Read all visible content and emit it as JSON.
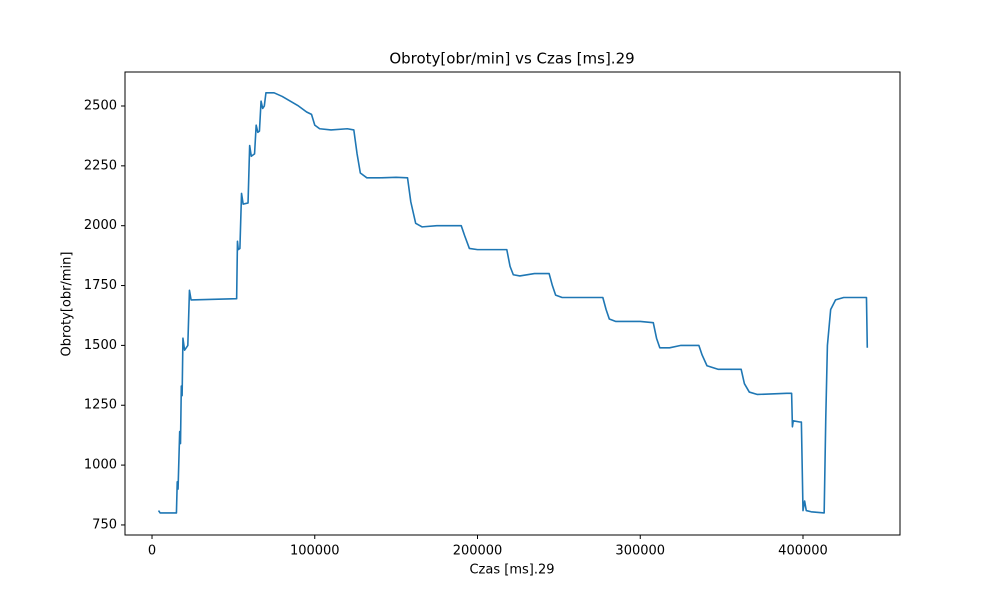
{
  "chart_data": {
    "type": "line",
    "title": "Obroty[obr/min] vs Czas [ms].29",
    "x_label": "Czas [ms].29",
    "y_label": "Obroty[obr/min]",
    "xlim": [
      -16600,
      459600
    ],
    "ylim": [
      708,
      2642
    ],
    "xticks": [
      0,
      100000,
      200000,
      300000,
      400000
    ],
    "yticks": [
      750,
      1000,
      1250,
      1500,
      1750,
      2000,
      2250,
      2500
    ],
    "grid": false,
    "series": [
      {
        "name": "Obroty[obr/min]",
        "color": "#1f77b4",
        "x": [
          4000,
          5000,
          15000,
          15500,
          16000,
          17000,
          17500,
          18000,
          18500,
          19000,
          20000,
          22000,
          23000,
          24000,
          52000,
          52500,
          53000,
          54000,
          55000,
          56000,
          59000,
          60000,
          61000,
          63000,
          64000,
          65000,
          66000,
          67000,
          68000,
          69000,
          70000,
          75000,
          80000,
          85000,
          90000,
          95000,
          98000,
          100000,
          103000,
          110000,
          120000,
          124000,
          126000,
          128000,
          132000,
          140000,
          150000,
          157000,
          159000,
          162000,
          166000,
          175000,
          190000,
          192000,
          195000,
          200000,
          218000,
          220000,
          222000,
          226000,
          235000,
          244000,
          246000,
          248000,
          252000,
          270000,
          277000,
          279000,
          281000,
          285000,
          300000,
          308000,
          310000,
          312000,
          318000,
          325000,
          336000,
          338000,
          341000,
          348000,
          362000,
          364000,
          367000,
          372000,
          390000,
          393000,
          393500,
          394000,
          398000,
          399000,
          400000,
          401000,
          402000,
          405000,
          413000,
          414000,
          415000,
          417000,
          420000,
          425000,
          430000,
          438000,
          439000,
          439500
        ],
        "values": [
          810,
          800,
          800,
          930,
          900,
          1140,
          1090,
          1330,
          1290,
          1530,
          1480,
          1500,
          1730,
          1690,
          1695,
          1935,
          1900,
          1905,
          2135,
          2090,
          2095,
          2335,
          2290,
          2300,
          2420,
          2390,
          2395,
          2520,
          2490,
          2500,
          2555,
          2555,
          2540,
          2520,
          2500,
          2475,
          2465,
          2420,
          2405,
          2400,
          2405,
          2400,
          2300,
          2220,
          2200,
          2200,
          2202,
          2200,
          2100,
          2010,
          1995,
          2000,
          2000,
          1960,
          1905,
          1900,
          1900,
          1830,
          1795,
          1790,
          1800,
          1800,
          1750,
          1710,
          1700,
          1700,
          1700,
          1650,
          1610,
          1600,
          1600,
          1595,
          1530,
          1490,
          1490,
          1500,
          1500,
          1460,
          1415,
          1400,
          1400,
          1340,
          1305,
          1295,
          1300,
          1300,
          1160,
          1185,
          1180,
          1180,
          810,
          850,
          810,
          805,
          800,
          1200,
          1500,
          1650,
          1690,
          1700,
          1700,
          1700,
          1700,
          1490
        ]
      }
    ]
  }
}
